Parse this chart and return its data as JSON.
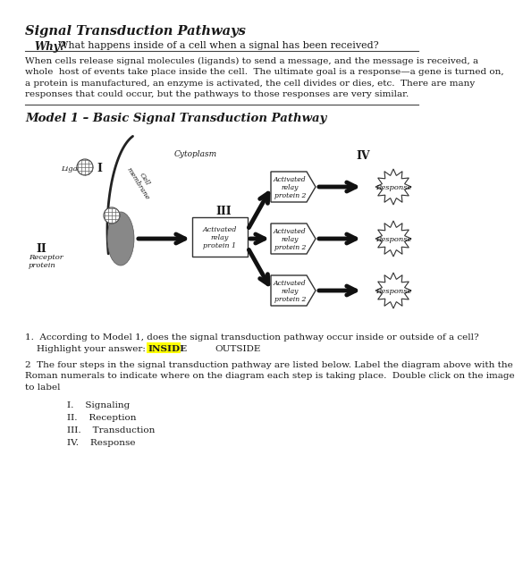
{
  "title": "Signal Transduction Pathways",
  "subtitle_bold": "Why?",
  "subtitle_rest": "What happens inside of a cell when a signal has been received?",
  "body_lines": [
    "When cells release signal molecules (ligands) to send a message, and the message is received, a",
    "whole  host of events take place inside the cell.  The ultimate goal is a response—a gene is turned on,",
    "a protein is manufactured, an enzyme is activated, the cell divides or dies, etc.  There are many",
    "responses that could occur, but the pathways to those responses are very similar."
  ],
  "model_title": "Model 1 – Basic Signal Transduction Pathway",
  "q1_line1": "1.  According to Model 1, does the signal transduction pathway occur inside or outside of a cell?",
  "q1_line2": "    Highlight your answer:",
  "inside_text": "INSIDE",
  "outside_text": "OUTSIDE",
  "q2_lines": [
    "2  The four steps in the signal transduction pathway are listed below. Label the diagram above with the",
    "Roman numerals to indicate where on the diagram each step is taking place.  Double click on the image",
    "to label"
  ],
  "steps": [
    "I.    Signaling",
    "II.    Reception",
    "III.    Transduction",
    "IV.    Response"
  ],
  "bg_color": "#ffffff",
  "text_color": "#1a1a1a",
  "highlight_color": "#ffff00"
}
